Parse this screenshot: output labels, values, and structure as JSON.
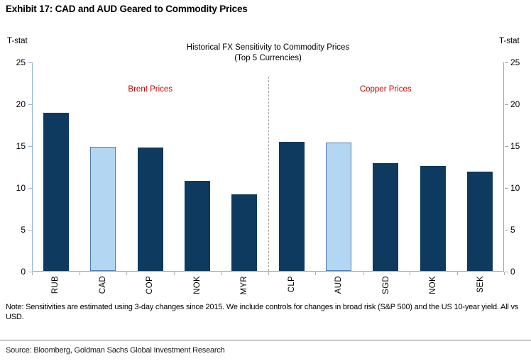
{
  "exhibit_title": "Exhibit 17: CAD and AUD Geared to Commodity Prices",
  "chart_data": {
    "type": "bar",
    "title": "Historical FX Sensitivity to Commodity Prices",
    "subtitle": "(Top 5 Currencies)",
    "ylabel_left": "T-stat",
    "ylabel_right": "T-stat",
    "ylim": [
      0,
      25
    ],
    "yticks": [
      0,
      5,
      10,
      15,
      20,
      25
    ],
    "grid": "off",
    "categories": [
      "RUB",
      "CAD",
      "COP",
      "NOK",
      "MYR",
      "CLP",
      "AUD",
      "SGD",
      "NOK",
      "SEK"
    ],
    "values": [
      19.0,
      14.9,
      14.8,
      10.8,
      9.2,
      15.5,
      15.4,
      12.9,
      12.6,
      11.9
    ],
    "highlight_indexes": [
      1,
      6
    ],
    "highlight_categories": [
      "CAD",
      "AUD"
    ],
    "sections": [
      {
        "label": "Brent Prices",
        "categories": [
          "RUB",
          "CAD",
          "COP",
          "NOK",
          "MYR"
        ]
      },
      {
        "label": "Copper Prices",
        "categories": [
          "CLP",
          "AUD",
          "SGD",
          "NOK",
          "SEK"
        ]
      }
    ],
    "divider_after_index": 4,
    "colors": {
      "bar": "#0d3a5e",
      "highlight_fill": "#b3d7f2",
      "highlight_border": "#4e7ca9",
      "section_label": "#cc0000",
      "axis_left": "#95b3d7",
      "axis_right": "#a6a6a6",
      "divider": "#9e9e9e"
    }
  },
  "note": "Note: Sensitivities are estimated using 3-day changes since 2015. We include controls for changes in broad risk (S&P 500) and the US 10-year yield. All vs USD.",
  "source": "Source: Bloomberg, Goldman Sachs Global Investment Research"
}
